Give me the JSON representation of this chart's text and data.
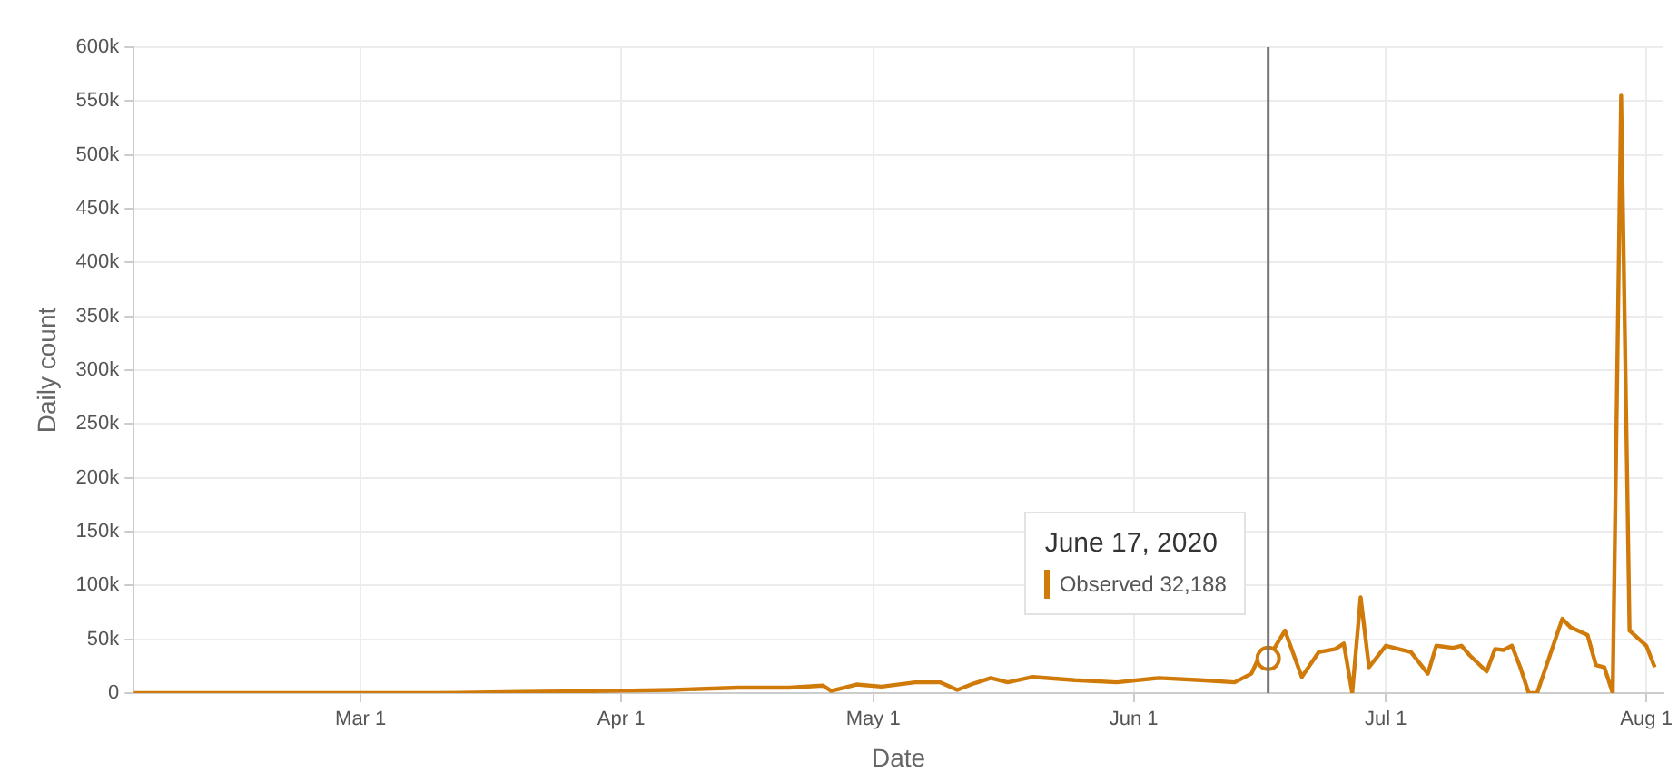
{
  "chart_data": {
    "type": "line",
    "xlabel": "Date",
    "ylabel": "Daily count",
    "x": [
      "2020-02-03",
      "2020-02-20",
      "2020-03-10",
      "2020-03-20",
      "2020-03-30",
      "2020-04-07",
      "2020-04-15",
      "2020-04-21",
      "2020-04-25",
      "2020-04-26",
      "2020-04-29",
      "2020-05-02",
      "2020-05-06",
      "2020-05-09",
      "2020-05-11",
      "2020-05-13",
      "2020-05-15",
      "2020-05-17",
      "2020-05-20",
      "2020-05-25",
      "2020-05-30",
      "2020-06-04",
      "2020-06-09",
      "2020-06-13",
      "2020-06-15",
      "2020-06-16",
      "2020-06-17",
      "2020-06-19",
      "2020-06-21",
      "2020-06-23",
      "2020-06-25",
      "2020-06-26",
      "2020-06-27",
      "2020-06-28",
      "2020-06-29",
      "2020-07-01",
      "2020-07-04",
      "2020-07-06",
      "2020-07-07",
      "2020-07-09",
      "2020-07-10",
      "2020-07-11",
      "2020-07-13",
      "2020-07-14",
      "2020-07-15",
      "2020-07-16",
      "2020-07-17",
      "2020-07-18",
      "2020-07-19",
      "2020-07-22",
      "2020-07-23",
      "2020-07-25",
      "2020-07-26",
      "2020-07-27",
      "2020-07-28",
      "2020-07-29",
      "2020-07-30",
      "2020-08-01",
      "2020-08-02"
    ],
    "series": [
      {
        "color": "#d07a0a",
        "values": [
          0,
          0,
          0,
          1000,
          2000,
          3000,
          5000,
          5000,
          7000,
          2000,
          8000,
          6000,
          10000,
          10000,
          3000,
          9000,
          14000,
          10000,
          15000,
          12000,
          10000,
          14000,
          12000,
          10000,
          18000,
          35000,
          32188,
          58000,
          15000,
          38000,
          41000,
          46000,
          0,
          89000,
          24000,
          44000,
          38000,
          18000,
          44000,
          42000,
          44000,
          35000,
          20000,
          41000,
          40000,
          44000,
          24000,
          0,
          0,
          69000,
          61000,
          54000,
          26000,
          24000,
          0,
          555000,
          58000,
          44000,
          24000
        ]
      }
    ],
    "xlim": [
      "2020-02-03",
      "2020-08-03"
    ],
    "xticks": [
      {
        "value": "2020-03-01",
        "label": "Mar 1"
      },
      {
        "value": "2020-04-01",
        "label": "Apr 1"
      },
      {
        "value": "2020-05-01",
        "label": "May 1"
      },
      {
        "value": "2020-06-01",
        "label": "Jun 1"
      },
      {
        "value": "2020-07-01",
        "label": "Jul 1"
      },
      {
        "value": "2020-08-01",
        "label": "Aug 1"
      }
    ],
    "ylim": [
      0,
      600000
    ],
    "yticks": [
      0,
      {
        "value": 50000,
        "label": "50k"
      },
      {
        "value": 100000,
        "label": "100k"
      },
      {
        "value": 150000,
        "label": "150k"
      },
      {
        "value": 200000,
        "label": "200k"
      },
      {
        "value": 250000,
        "label": "250k"
      },
      {
        "value": 300000,
        "label": "300k"
      },
      {
        "value": 350000,
        "label": "350k"
      },
      {
        "value": 400000,
        "label": "400k"
      },
      {
        "value": 450000,
        "label": "450k"
      },
      {
        "value": 500000,
        "label": "500k"
      },
      {
        "value": 550000,
        "label": "550k"
      },
      {
        "value": 600000,
        "label": "600k"
      }
    ],
    "ref_lines": [
      {
        "axis": "x",
        "value": "2020-06-17",
        "color": "#777777"
      }
    ],
    "annotations": [
      "June 17, 2020",
      "Observed 32,188"
    ],
    "grid": true,
    "legend": false
  }
}
